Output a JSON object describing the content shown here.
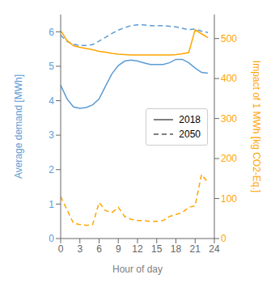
{
  "chart_data": {
    "type": "line",
    "xlabel": "Hour of day",
    "ylabel": "Average demand [MWh]",
    "y2label": "Impact of 1 MWh [kg CO2-Eq.]",
    "x": [
      0,
      1,
      2,
      3,
      4,
      5,
      6,
      7,
      8,
      9,
      10,
      11,
      12,
      13,
      14,
      15,
      16,
      17,
      18,
      19,
      20,
      21,
      22,
      23
    ],
    "xlim": [
      0,
      24
    ],
    "xticks": [
      0,
      3,
      6,
      9,
      12,
      15,
      18,
      21,
      24
    ],
    "ylim": [
      0.0,
      6.5
    ],
    "yticks": [
      0,
      1,
      2,
      3,
      4,
      5,
      6
    ],
    "y2lim": [
      0,
      560
    ],
    "y2ticks": [
      0,
      100,
      200,
      300,
      400,
      500
    ],
    "grid": false,
    "legend": "center right",
    "series": [
      {
        "name": "2018",
        "color": "#5B9BD5",
        "line_style": "solid",
        "axis": "y",
        "values": [
          4.45,
          4.05,
          3.82,
          3.78,
          3.8,
          3.88,
          4.05,
          4.42,
          4.78,
          5.02,
          5.15,
          5.18,
          5.15,
          5.1,
          5.05,
          5.05,
          5.05,
          5.1,
          5.2,
          5.2,
          5.1,
          4.95,
          4.82,
          4.8
        ]
      },
      {
        "name": "2050",
        "color": "#5B9BD5",
        "line_style": "dashed",
        "axis": "y",
        "values": [
          5.9,
          5.72,
          5.64,
          5.6,
          5.6,
          5.63,
          5.73,
          5.84,
          5.95,
          6.05,
          6.12,
          6.18,
          6.2,
          6.2,
          6.18,
          6.18,
          6.18,
          6.16,
          6.14,
          6.1,
          6.06,
          6.08,
          6.02,
          5.98
        ]
      },
      {
        "name": "2018",
        "color": "#FFA500",
        "line_style": "solid",
        "axis": "y2",
        "values": [
          520,
          495,
          482,
          478,
          475,
          472,
          468,
          466,
          463,
          461,
          460,
          459,
          459,
          459,
          459,
          459,
          459,
          459,
          460,
          462,
          465,
          522,
          512,
          502
        ]
      },
      {
        "name": "2050",
        "color": "#FFA500",
        "line_style": "dashed",
        "axis": "y2",
        "values": [
          105,
          72,
          38,
          35,
          33,
          35,
          90,
          70,
          65,
          78,
          55,
          48,
          45,
          45,
          43,
          43,
          45,
          55,
          60,
          65,
          78,
          82,
          160,
          140
        ]
      }
    ]
  }
}
